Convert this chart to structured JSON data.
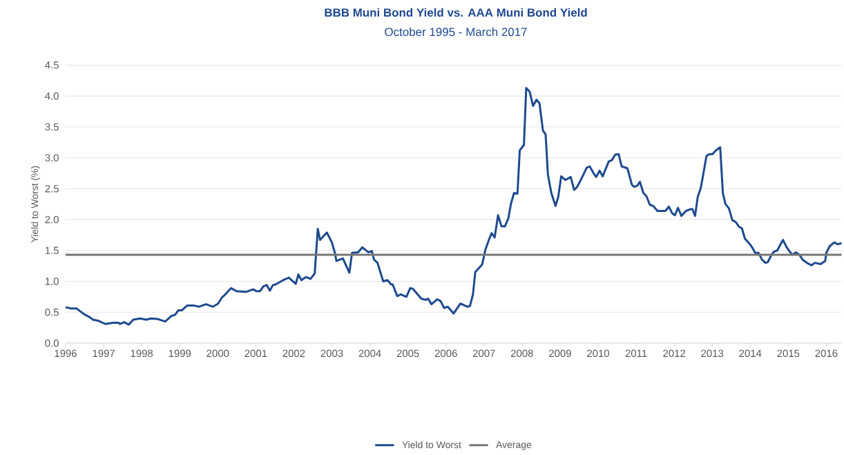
{
  "chart_data": {
    "type": "line",
    "title": "BBB Muni Bond Yield vs. AAA Muni Bond Yield",
    "subtitle": "October 1995 - March 2017",
    "ylabel": "Yield to Worst (%)",
    "xlim": [
      1996,
      2016.4
    ],
    "ylim": [
      0,
      4.5
    ],
    "xticks": [
      1996,
      1997,
      1998,
      1999,
      2000,
      2001,
      2002,
      2003,
      2004,
      2005,
      2006,
      2007,
      2008,
      2009,
      2010,
      2011,
      2012,
      2013,
      2014,
      2015,
      2016
    ],
    "yticks": [
      {
        "value": 0,
        "label": "0.0"
      },
      0.5,
      {
        "value": 1,
        "label": "1.0"
      },
      1.5,
      {
        "value": 2,
        "label": "2.0"
      },
      2.5,
      {
        "value": 3,
        "label": "3.0"
      },
      3.5,
      {
        "value": 4,
        "label": "4.0"
      },
      4.5
    ],
    "grid": "y",
    "legend": "bottom",
    "series": [
      {
        "name": "Yield to Worst",
        "color": "#1d4a8f",
        "x": [
          1996.0,
          1996.15,
          1996.29,
          1996.48,
          1996.63,
          1996.72,
          1996.87,
          1997.05,
          1997.24,
          1997.39,
          1997.43,
          1997.54,
          1997.66,
          1997.78,
          1997.96,
          1998.12,
          1998.24,
          1998.42,
          1998.62,
          1998.78,
          1998.88,
          1998.96,
          1999.05,
          1999.2,
          1999.36,
          1999.51,
          1999.69,
          1999.87,
          2000.01,
          2000.11,
          2000.2,
          2000.35,
          2000.5,
          2000.75,
          2000.93,
          2001.02,
          2001.11,
          2001.2,
          2001.29,
          2001.37,
          2001.45,
          2001.52,
          2001.72,
          2001.87,
          2002.05,
          2002.12,
          2002.2,
          2002.32,
          2002.44,
          2002.55,
          2002.63,
          2002.69,
          2002.87,
          2003.0,
          2003.08,
          2003.12,
          2003.29,
          2003.46,
          2003.53,
          2003.69,
          2003.8,
          2003.96,
          2004.05,
          2004.11,
          2004.2,
          2004.35,
          2004.46,
          2004.56,
          2004.6,
          2004.72,
          2004.81,
          2004.96,
          2005.06,
          2005.13,
          2005.35,
          2005.47,
          2005.53,
          2005.62,
          2005.77,
          2005.86,
          2005.95,
          2006.05,
          2006.2,
          2006.38,
          2006.56,
          2006.63,
          2006.71,
          2006.77,
          2006.95,
          2007.04,
          2007.14,
          2007.2,
          2007.28,
          2007.37,
          2007.46,
          2007.55,
          2007.64,
          2007.71,
          2007.79,
          2007.88,
          2007.94,
          2008.05,
          2008.11,
          2008.2,
          2008.29,
          2008.38,
          2008.46,
          2008.55,
          2008.62,
          2008.68,
          2008.77,
          2008.88,
          2008.95,
          2009.03,
          2009.14,
          2009.28,
          2009.37,
          2009.45,
          2009.56,
          2009.7,
          2009.78,
          2009.88,
          2009.95,
          2010.04,
          2010.12,
          2010.28,
          2010.36,
          2010.45,
          2010.54,
          2010.62,
          2010.77,
          2010.89,
          2010.95,
          2011.03,
          2011.1,
          2011.19,
          2011.27,
          2011.36,
          2011.45,
          2011.56,
          2011.77,
          2011.86,
          2011.95,
          2012.02,
          2012.1,
          2012.19,
          2012.31,
          2012.44,
          2012.48,
          2012.55,
          2012.62,
          2012.7,
          2012.85,
          2012.93,
          2013.01,
          2013.08,
          2013.21,
          2013.28,
          2013.35,
          2013.44,
          2013.53,
          2013.62,
          2013.71,
          2013.78,
          2013.86,
          2013.98,
          2014.06,
          2014.13,
          2014.22,
          2014.31,
          2014.4,
          2014.46,
          2014.56,
          2014.62,
          2014.71,
          2014.86,
          2014.95,
          2015.1,
          2015.2,
          2015.29,
          2015.38,
          2015.49,
          2015.61,
          2015.7,
          2015.85,
          2015.97,
          2016.0,
          2016.09,
          2016.21,
          2016.3,
          2016.4
        ],
        "values": [
          0.58,
          0.56,
          0.56,
          0.47,
          0.42,
          0.38,
          0.36,
          0.31,
          0.33,
          0.33,
          0.31,
          0.34,
          0.3,
          0.38,
          0.4,
          0.38,
          0.4,
          0.39,
          0.35,
          0.44,
          0.46,
          0.53,
          0.53,
          0.61,
          0.61,
          0.59,
          0.63,
          0.59,
          0.64,
          0.74,
          0.79,
          0.89,
          0.84,
          0.83,
          0.87,
          0.84,
          0.84,
          0.92,
          0.94,
          0.85,
          0.94,
          0.95,
          1.02,
          1.06,
          0.96,
          1.11,
          1.02,
          1.07,
          1.04,
          1.13,
          1.85,
          1.67,
          1.79,
          1.63,
          1.46,
          1.33,
          1.37,
          1.14,
          1.46,
          1.47,
          1.55,
          1.47,
          1.49,
          1.35,
          1.3,
          1.0,
          1.02,
          0.95,
          0.95,
          0.76,
          0.79,
          0.75,
          0.89,
          0.88,
          0.72,
          0.7,
          0.72,
          0.63,
          0.71,
          0.68,
          0.57,
          0.59,
          0.48,
          0.64,
          0.59,
          0.6,
          0.79,
          1.15,
          1.27,
          1.52,
          1.69,
          1.78,
          1.71,
          2.07,
          1.89,
          1.89,
          2.02,
          2.26,
          2.43,
          2.42,
          3.12,
          3.21,
          4.13,
          4.07,
          3.84,
          3.94,
          3.88,
          3.44,
          3.38,
          2.73,
          2.43,
          2.22,
          2.36,
          2.7,
          2.64,
          2.69,
          2.48,
          2.53,
          2.66,
          2.84,
          2.86,
          2.75,
          2.69,
          2.79,
          2.7,
          2.94,
          2.96,
          3.05,
          3.06,
          2.86,
          2.83,
          2.56,
          2.53,
          2.55,
          2.61,
          2.43,
          2.38,
          2.24,
          2.22,
          2.14,
          2.14,
          2.21,
          2.1,
          2.07,
          2.19,
          2.06,
          2.14,
          2.17,
          2.17,
          2.06,
          2.37,
          2.51,
          3.03,
          3.06,
          3.06,
          3.11,
          3.17,
          2.43,
          2.25,
          2.18,
          1.99,
          1.96,
          1.88,
          1.86,
          1.69,
          1.61,
          1.54,
          1.46,
          1.46,
          1.35,
          1.3,
          1.31,
          1.43,
          1.48,
          1.5,
          1.67,
          1.56,
          1.43,
          1.47,
          1.43,
          1.35,
          1.3,
          1.26,
          1.3,
          1.28,
          1.33,
          1.46,
          1.57,
          1.63,
          1.6,
          1.62
        ]
      },
      {
        "name": "Average",
        "color": "#767676",
        "x": [
          1996,
          2016.4
        ],
        "values": [
          1.43,
          1.43
        ]
      }
    ]
  }
}
